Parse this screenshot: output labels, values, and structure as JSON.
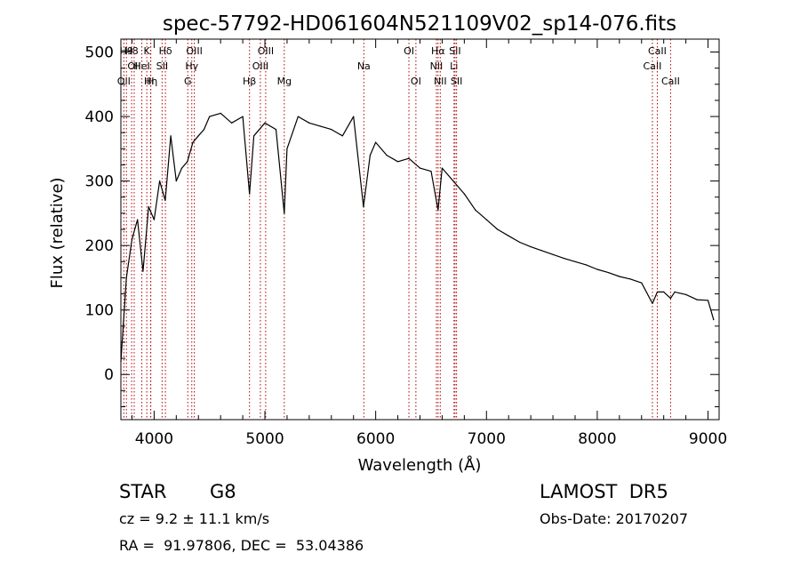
{
  "chart_data": {
    "type": "line",
    "title": "spec-57792-HD061604N521109V02_sp14-076.fits",
    "xlabel": "Wavelength (Å)",
    "ylabel": "Flux (relative)",
    "xlim": [
      3700,
      9100
    ],
    "ylim": [
      -70,
      520
    ],
    "xticks": [
      4000,
      5000,
      6000,
      7000,
      8000,
      9000
    ],
    "yticks": [
      0,
      100,
      200,
      300,
      400,
      500
    ],
    "line_color": "#000000",
    "marker_color": "#b00000",
    "series": [
      {
        "x": [
          3700,
          3750,
          3800,
          3850,
          3900,
          3950,
          4000,
          4050,
          4100,
          4150,
          4200,
          4250,
          4300,
          4350,
          4400,
          4450,
          4500,
          4600,
          4700,
          4800,
          4861,
          4900,
          5000,
          5100,
          5175,
          5200,
          5300,
          5400,
          5500,
          5600,
          5700,
          5800,
          5890,
          5950,
          6000,
          6100,
          6200,
          6300,
          6400,
          6500,
          6563,
          6600,
          6700,
          6800,
          6900,
          7000,
          7100,
          7200,
          7300,
          7400,
          7500,
          7600,
          7700,
          7800,
          7900,
          8000,
          8100,
          8200,
          8300,
          8400,
          8498,
          8542,
          8600,
          8662,
          8700,
          8800,
          8900,
          9000,
          9050
        ],
        "y": [
          20,
          150,
          210,
          240,
          160,
          260,
          240,
          300,
          270,
          370,
          300,
          320,
          330,
          360,
          370,
          380,
          400,
          405,
          390,
          400,
          280,
          370,
          390,
          380,
          250,
          350,
          400,
          390,
          385,
          380,
          370,
          400,
          260,
          340,
          360,
          340,
          330,
          335,
          320,
          315,
          255,
          320,
          300,
          280,
          255,
          240,
          225,
          215,
          205,
          198,
          192,
          186,
          180,
          175,
          170,
          163,
          158,
          152,
          148,
          142,
          110,
          128,
          128,
          118,
          128,
          124,
          116,
          115,
          85
        ]
      }
    ],
    "markers": [
      {
        "x": 3727,
        "label": "OII",
        "row": 2
      },
      {
        "x": 3750,
        "label": "H9",
        "row": 0
      },
      {
        "x": 3797,
        "label": "H8",
        "row": 0
      },
      {
        "x": 3820,
        "label": "OII",
        "row": 1
      },
      {
        "x": 3889,
        "label": "HeI",
        "row": 1
      },
      {
        "x": 3934,
        "label": "K",
        "row": 0
      },
      {
        "x": 3968,
        "label": "H",
        "row": 2
      },
      {
        "x": 3970,
        "label": "Hη",
        "row": 2
      },
      {
        "x": 4072,
        "label": "SII",
        "row": 1
      },
      {
        "x": 4102,
        "label": "Hδ",
        "row": 0
      },
      {
        "x": 4304,
        "label": "G",
        "row": 2
      },
      {
        "x": 4340,
        "label": "Hγ",
        "row": 1
      },
      {
        "x": 4363,
        "label": "OIII",
        "row": 0
      },
      {
        "x": 4861,
        "label": "Hβ",
        "row": 2
      },
      {
        "x": 4959,
        "label": "OIII",
        "row": 1
      },
      {
        "x": 5007,
        "label": "OIII",
        "row": 0
      },
      {
        "x": 5175,
        "label": "Mg",
        "row": 2
      },
      {
        "x": 5893,
        "label": "Na",
        "row": 1
      },
      {
        "x": 6300,
        "label": "OI",
        "row": 0
      },
      {
        "x": 6363,
        "label": "OI",
        "row": 2
      },
      {
        "x": 6548,
        "label": "NII",
        "row": 1
      },
      {
        "x": 6563,
        "label": "Hα",
        "row": 0
      },
      {
        "x": 6583,
        "label": "NII",
        "row": 2
      },
      {
        "x": 6707,
        "label": "Li",
        "row": 1
      },
      {
        "x": 6716,
        "label": "SII",
        "row": 0
      },
      {
        "x": 6730,
        "label": "SII",
        "row": 2
      },
      {
        "x": 8498,
        "label": "CaII",
        "row": 1
      },
      {
        "x": 8542,
        "label": "CaII",
        "row": 0
      },
      {
        "x": 8662,
        "label": "CaII",
        "row": 2
      }
    ]
  },
  "info": {
    "object_type": "STAR",
    "subclass": "G8",
    "cz": "cz = 9.2 ± 11.1 km/s",
    "coords": "RA =  91.97806, DEC =  53.04386",
    "survey": "LAMOST  DR5",
    "obs_date": "Obs-Date: 20170207"
  }
}
